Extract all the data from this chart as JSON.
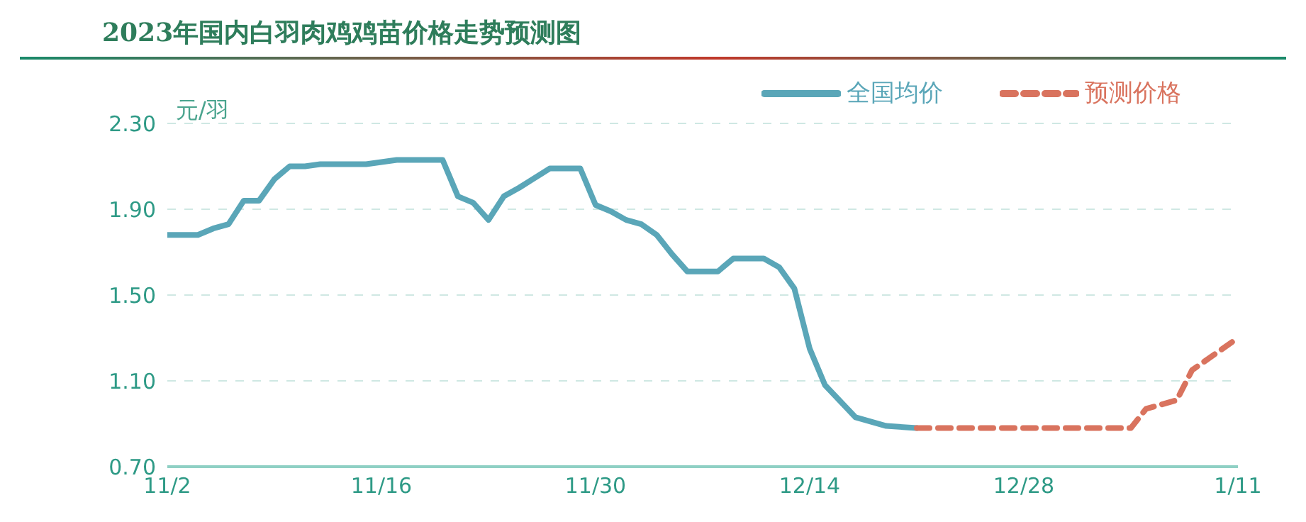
{
  "chart_data": {
    "type": "line",
    "title": "2023年国内白羽肉鸡鸡苗价格走势预测图",
    "ylabel": "元/羽",
    "ylim": [
      0.7,
      2.3
    ],
    "yticks": [
      {
        "value": 0.7,
        "label": "0.70"
      },
      {
        "value": 1.1,
        "label": "1.10"
      },
      {
        "value": 1.5,
        "label": "1.50"
      },
      {
        "value": 1.9,
        "label": "1.90"
      },
      {
        "value": 2.3,
        "label": "2.30"
      }
    ],
    "xlim": [
      "2023-11-02",
      "2024-01-11"
    ],
    "xticks": [
      {
        "value": "2023-11-02",
        "label": "11/2"
      },
      {
        "value": "2023-11-16",
        "label": "11/16"
      },
      {
        "value": "2023-11-30",
        "label": "11/30"
      },
      {
        "value": "2023-12-14",
        "label": "12/14"
      },
      {
        "value": "2023-12-28",
        "label": "12/28"
      },
      {
        "value": "2024-01-11",
        "label": "1/11"
      }
    ],
    "grid": "y",
    "legend": "top right",
    "marker": "none",
    "series": [
      {
        "name": "全国均价",
        "color": "#5aa6b8",
        "line_style": "solid",
        "x": [
          "2023-11-02",
          "2023-11-04",
          "2023-11-05",
          "2023-11-06",
          "2023-11-07",
          "2023-11-08",
          "2023-11-09",
          "2023-11-10",
          "2023-11-11",
          "2023-11-12",
          "2023-11-15",
          "2023-11-17",
          "2023-11-20",
          "2023-11-21",
          "2023-11-22",
          "2023-11-23",
          "2023-11-24",
          "2023-11-25",
          "2023-11-27",
          "2023-11-29",
          "2023-11-30",
          "2023-12-01",
          "2023-12-02",
          "2023-12-03",
          "2023-12-04",
          "2023-12-05",
          "2023-12-06",
          "2023-12-08",
          "2023-12-09",
          "2023-12-11",
          "2023-12-12",
          "2023-12-13",
          "2023-12-14",
          "2023-12-15",
          "2023-12-17",
          "2023-12-19",
          "2023-12-21"
        ],
        "values": [
          1.78,
          1.78,
          1.81,
          1.83,
          1.94,
          1.94,
          2.04,
          2.1,
          2.1,
          2.11,
          2.11,
          2.13,
          2.13,
          1.96,
          1.93,
          1.85,
          1.96,
          2.0,
          2.09,
          2.09,
          1.92,
          1.89,
          1.85,
          1.83,
          1.78,
          1.69,
          1.61,
          1.61,
          1.67,
          1.67,
          1.63,
          1.53,
          1.25,
          1.08,
          0.93,
          0.89,
          0.88
        ]
      },
      {
        "name": "预测价格",
        "color": "#d9735e",
        "line_style": "dashed",
        "x": [
          "2023-12-21",
          "2024-01-04",
          "2024-01-05",
          "2024-01-07",
          "2024-01-08",
          "2024-01-11"
        ],
        "values": [
          0.88,
          0.88,
          0.97,
          1.01,
          1.15,
          1.3
        ]
      }
    ]
  }
}
